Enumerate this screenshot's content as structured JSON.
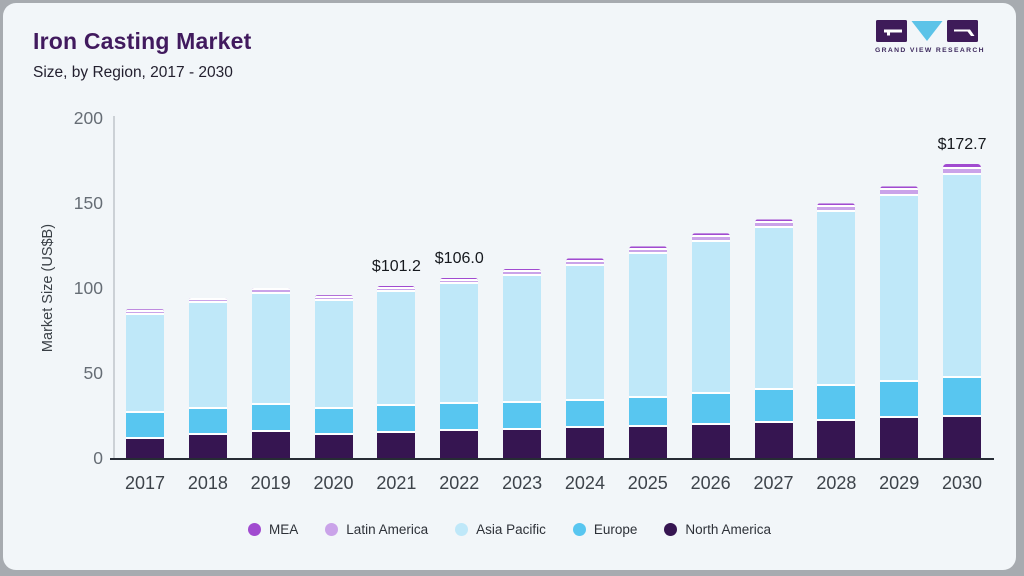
{
  "header": {
    "title": "Iron Casting Market",
    "subtitle": "Size, by Region, 2017 - 2030"
  },
  "logo": {
    "name": "grand-view-research-logo",
    "text": "GRAND VIEW RESEARCH",
    "purple": "#3e1b59",
    "blue": "#5cc3e8"
  },
  "colors": {
    "card_bg": "#f2f6f9",
    "frame_bg": "#a7abb0",
    "title": "#411a5e",
    "baseline": "#272c35",
    "y_axis_line": "#ccd1d6"
  },
  "chart_data": {
    "type": "bar",
    "stacked": true,
    "title": "Iron Casting Market",
    "subtitle": "Size, by Region, 2017 - 2030",
    "xlabel": "",
    "ylabel": "Market Size (US$B)",
    "ylim": [
      0,
      200
    ],
    "yticks": [
      0,
      50,
      100,
      150,
      200
    ],
    "grid": false,
    "legend_position": "bottom",
    "categories": [
      "2017",
      "2018",
      "2019",
      "2020",
      "2021",
      "2022",
      "2023",
      "2024",
      "2025",
      "2026",
      "2027",
      "2028",
      "2029",
      "2030"
    ],
    "series": [
      {
        "name": "North America",
        "color": "#361551",
        "values": [
          11.0,
          13.3,
          15.3,
          13.4,
          14.8,
          15.8,
          16.2,
          17.6,
          18.0,
          19.2,
          20.6,
          21.5,
          23.5,
          24.3
        ]
      },
      {
        "name": "Europe",
        "color": "#58c6f0",
        "values": [
          15.5,
          15.7,
          16.1,
          15.3,
          15.6,
          16.2,
          16.1,
          16.1,
          17.3,
          18.6,
          19.1,
          20.8,
          21.2,
          22.7
        ]
      },
      {
        "name": "Asia Pacific",
        "color": "#bfe8f9",
        "values": [
          57.8,
          61.9,
          65.1,
          63.6,
          67.0,
          70.1,
          74.9,
          79.3,
          84.5,
          89.5,
          95.5,
          102.2,
          109.6,
          119.6
        ]
      },
      {
        "name": "Latin America",
        "color": "#caa3e9",
        "values": [
          1.8,
          2.0,
          2.1,
          2.0,
          2.1,
          2.2,
          2.4,
          2.5,
          2.6,
          2.7,
          2.8,
          3.0,
          3.1,
          3.4
        ]
      },
      {
        "name": "MEA",
        "color": "#a14bd0",
        "values": [
          1.4,
          1.5,
          1.6,
          1.5,
          1.7,
          1.7,
          1.8,
          1.9,
          2.1,
          2.2,
          2.3,
          2.3,
          2.4,
          2.7
        ]
      }
    ],
    "totals": [
      87.5,
      94.4,
      100.2,
      95.8,
      101.2,
      106.0,
      111.4,
      117.4,
      124.5,
      132.2,
      140.3,
      149.8,
      159.8,
      172.7
    ],
    "annotations": [
      {
        "category": "2021",
        "label": "$101.2"
      },
      {
        "category": "2022",
        "label": "$106.0"
      },
      {
        "category": "2030",
        "label": "$172.7"
      }
    ],
    "legend": [
      {
        "label": "MEA",
        "color": "#a14bd0"
      },
      {
        "label": "Latin America",
        "color": "#caa3e9"
      },
      {
        "label": "Asia Pacific",
        "color": "#bfe8f9"
      },
      {
        "label": "Europe",
        "color": "#58c6f0"
      },
      {
        "label": "North America",
        "color": "#361551"
      }
    ]
  }
}
